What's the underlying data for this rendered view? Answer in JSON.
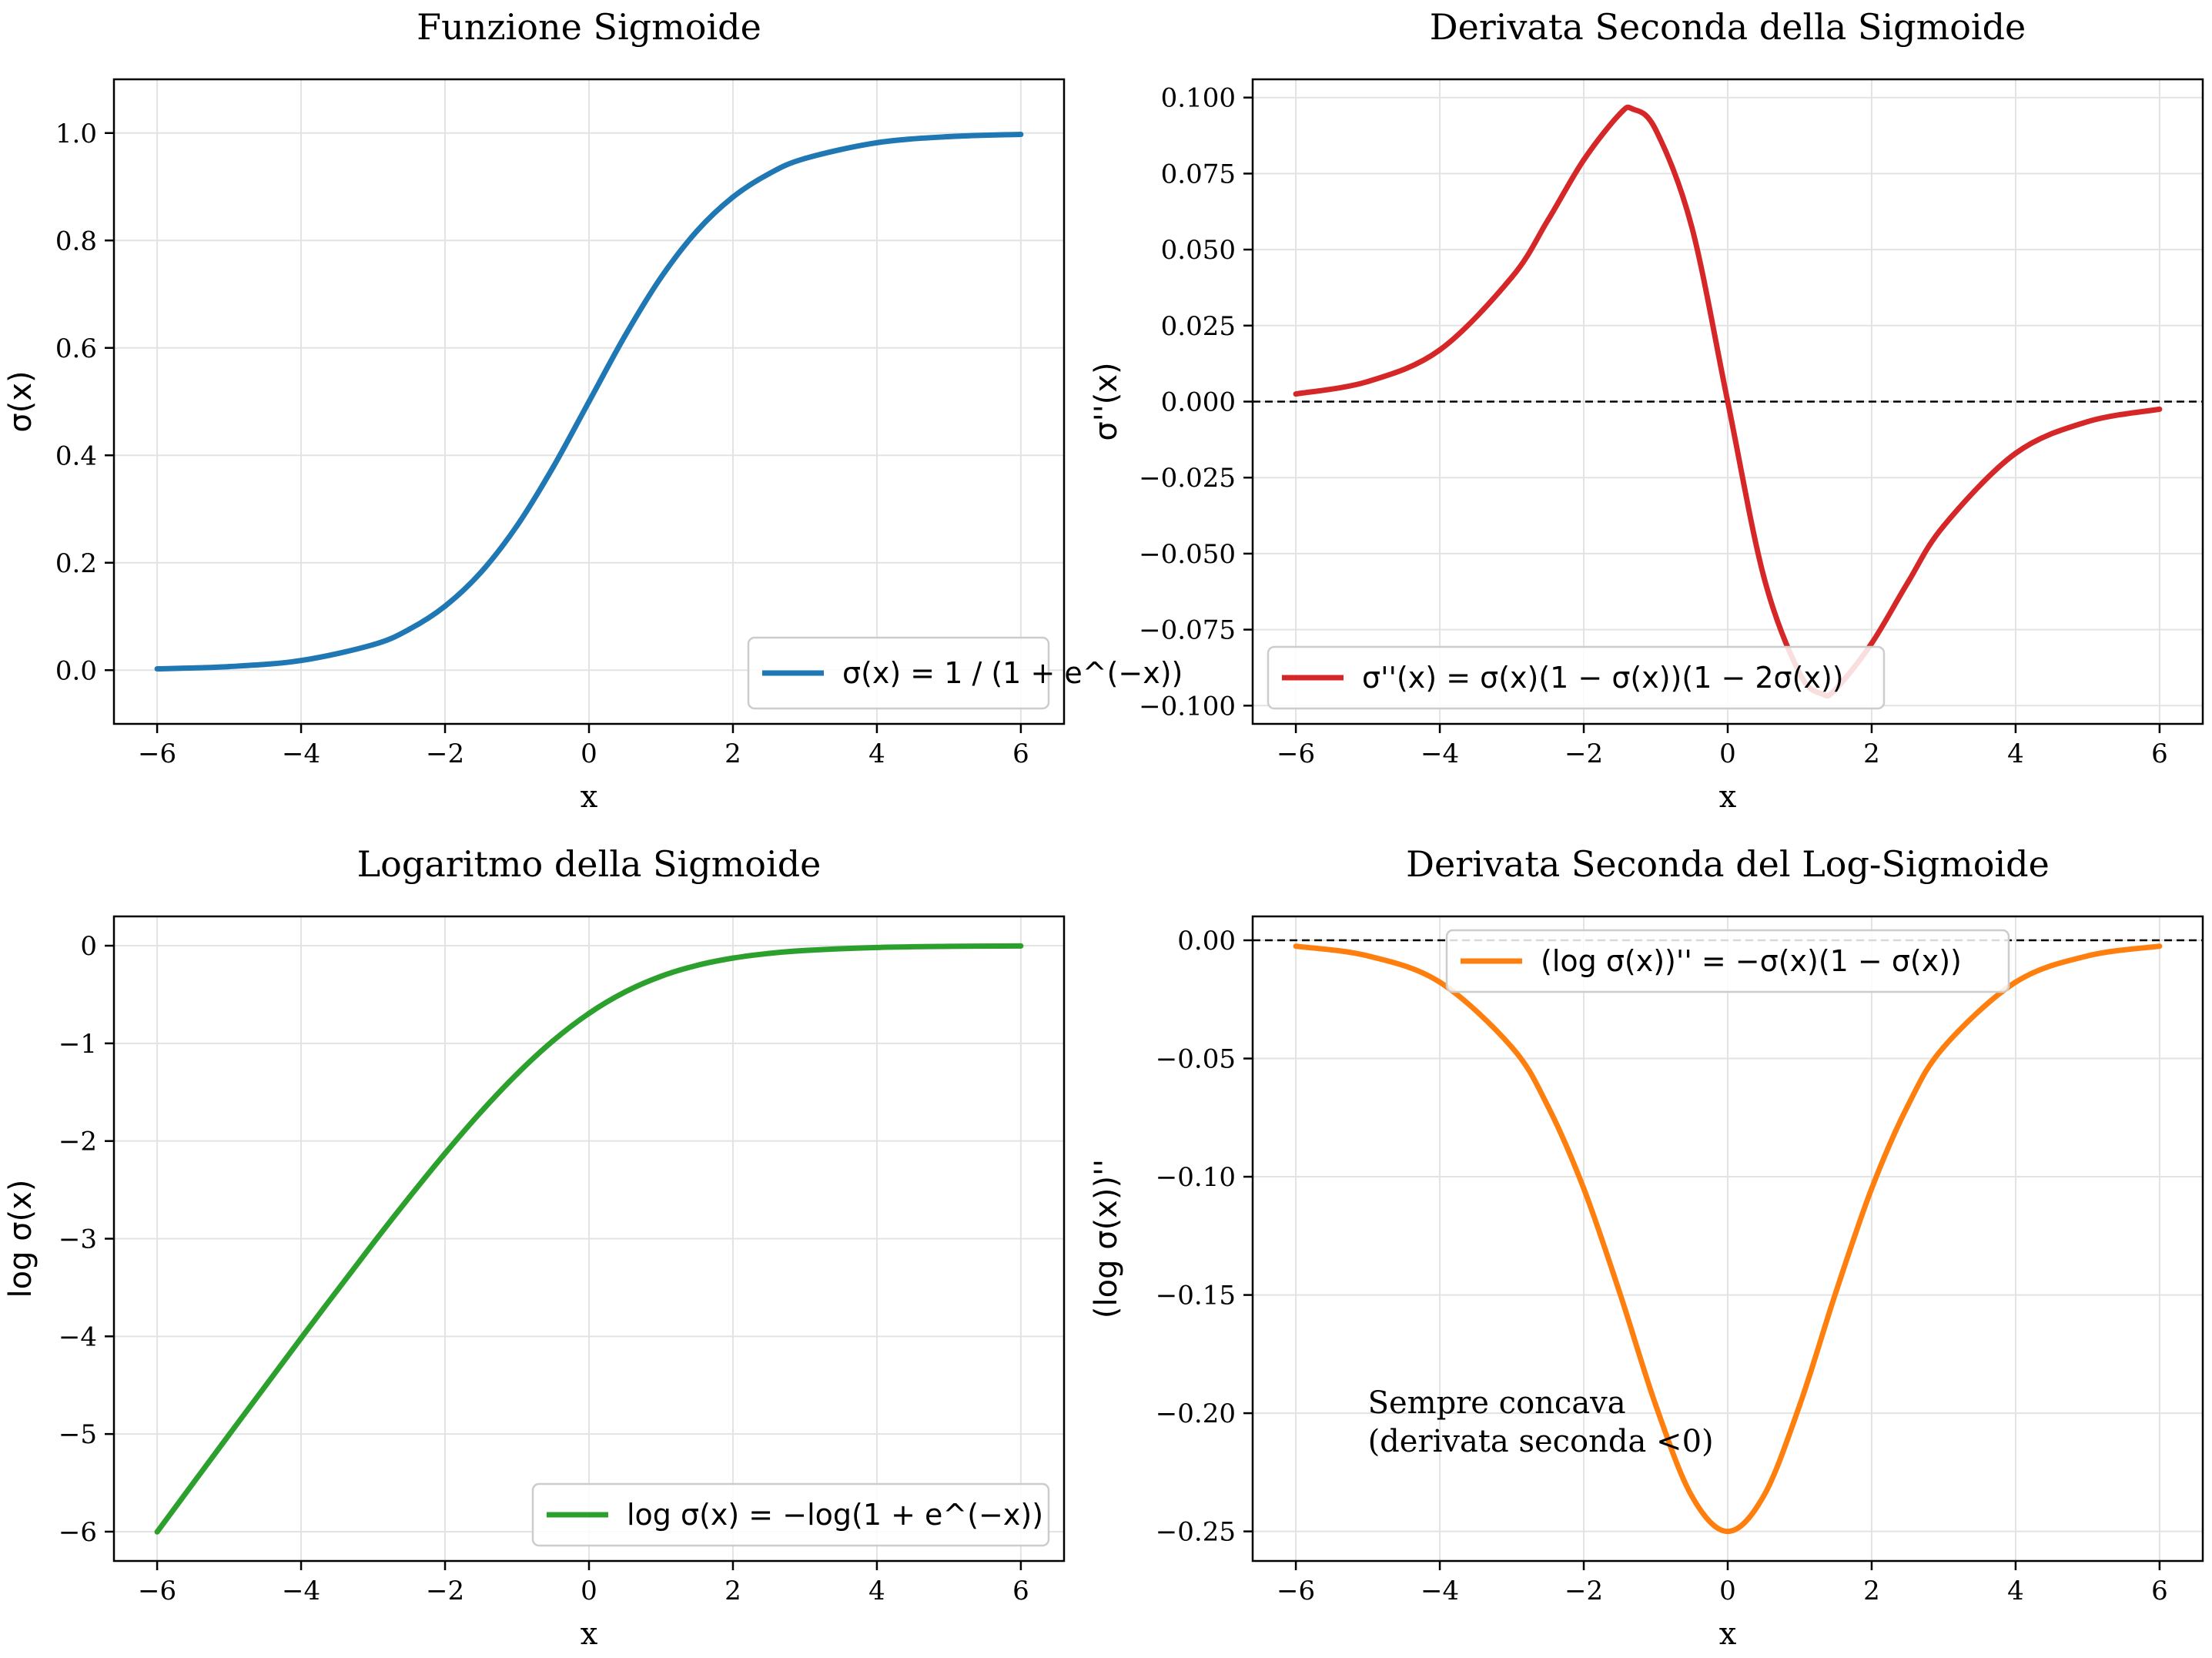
{
  "chart_data": [
    {
      "type": "line",
      "title": "Funzione Sigmoide",
      "xlabel": "x",
      "ylabel": "σ(x)",
      "xlim": [
        -6.6,
        6.6
      ],
      "ylim": [
        -0.1,
        1.1
      ],
      "xticks": [
        -6,
        -4,
        -2,
        0,
        2,
        4,
        6
      ],
      "xtick_labels": [
        "−6",
        "−4",
        "−2",
        "0",
        "2",
        "4",
        "6"
      ],
      "yticks": [
        0.0,
        0.2,
        0.4,
        0.6,
        0.8,
        1.0
      ],
      "ytick_labels": [
        "0.0",
        "0.2",
        "0.4",
        "0.6",
        "0.8",
        "1.0"
      ],
      "grid": true,
      "legend_position": "lower-right",
      "series": [
        {
          "name": "σ(x) = 1 / (1 + e^(−x))",
          "color": "#1f77b4",
          "x": [
            -6,
            -5,
            -4,
            -3,
            -2.5,
            -2,
            -1.5,
            -1,
            -0.5,
            0,
            0.5,
            1,
            1.5,
            2,
            2.5,
            3,
            4,
            5,
            6
          ],
          "y": [
            0.0025,
            0.0067,
            0.018,
            0.0474,
            0.0759,
            0.1192,
            0.1824,
            0.2689,
            0.3775,
            0.5,
            0.6225,
            0.7311,
            0.8176,
            0.8808,
            0.9241,
            0.9526,
            0.982,
            0.9933,
            0.9975
          ]
        }
      ]
    },
    {
      "type": "line",
      "title": "Derivata Seconda della Sigmoide",
      "xlabel": "x",
      "ylabel": "σ''(x)",
      "xlim": [
        -6.6,
        6.6
      ],
      "ylim": [
        -0.106,
        0.106
      ],
      "xticks": [
        -6,
        -4,
        -2,
        0,
        2,
        4,
        6
      ],
      "xtick_labels": [
        "−6",
        "−4",
        "−2",
        "0",
        "2",
        "4",
        "6"
      ],
      "yticks": [
        -0.1,
        -0.075,
        -0.05,
        -0.025,
        0.0,
        0.025,
        0.05,
        0.075,
        0.1
      ],
      "ytick_labels": [
        "−0.100",
        "−0.075",
        "−0.050",
        "−0.025",
        "0.000",
        "0.025",
        "0.050",
        "0.075",
        "0.100"
      ],
      "grid": true,
      "legend_position": "lower-left",
      "hline": 0,
      "series": [
        {
          "name": "σ''(x) = σ(x)(1 − σ(x))(1 − 2σ(x))",
          "color": "#d62728",
          "x": [
            -6,
            -5,
            -4,
            -3,
            -2.5,
            -2,
            -1.5,
            -1.317,
            -1,
            -0.5,
            0,
            0.5,
            1,
            1.317,
            1.5,
            2,
            2.5,
            3,
            4,
            5,
            6
          ],
          "y": [
            0.0025,
            0.0066,
            0.017,
            0.0409,
            0.0596,
            0.0795,
            0.0946,
            0.0962,
            0.0894,
            0.0575,
            0.0,
            -0.0575,
            -0.0894,
            -0.0962,
            -0.0946,
            -0.0795,
            -0.0596,
            -0.0409,
            -0.017,
            -0.0066,
            -0.0025
          ]
        }
      ]
    },
    {
      "type": "line",
      "title": "Logaritmo della Sigmoide",
      "xlabel": "x",
      "ylabel": "log σ(x)",
      "xlim": [
        -6.6,
        6.6
      ],
      "ylim": [
        -6.3,
        0.3
      ],
      "xticks": [
        -6,
        -4,
        -2,
        0,
        2,
        4,
        6
      ],
      "xtick_labels": [
        "−6",
        "−4",
        "−2",
        "0",
        "2",
        "4",
        "6"
      ],
      "yticks": [
        -6,
        -5,
        -4,
        -3,
        -2,
        -1,
        0
      ],
      "ytick_labels": [
        "−6",
        "−5",
        "−4",
        "−3",
        "−2",
        "−1",
        "0"
      ],
      "grid": true,
      "legend_position": "lower-right",
      "series": [
        {
          "name": "log σ(x) = −log(1 + e^(−x))",
          "color": "#2ca02c",
          "x": [
            -6,
            -5,
            -4,
            -3,
            -2.5,
            -2,
            -1.5,
            -1,
            -0.5,
            0,
            0.5,
            1,
            1.5,
            2,
            2.5,
            3,
            4,
            5,
            6
          ],
          "y": [
            -6.0025,
            -5.0067,
            -4.0181,
            -3.0486,
            -2.5789,
            -2.1269,
            -1.7014,
            -1.3133,
            -0.9741,
            -0.6931,
            -0.4741,
            -0.3133,
            -0.2014,
            -0.1269,
            -0.0789,
            -0.0486,
            -0.0181,
            -0.0067,
            -0.0025
          ]
        }
      ]
    },
    {
      "type": "line",
      "title": "Derivata Seconda del Log-Sigmoide",
      "xlabel": "x",
      "ylabel": "(log σ(x))''",
      "xlim": [
        -6.6,
        6.6
      ],
      "ylim": [
        -0.2625,
        0.0101
      ],
      "xticks": [
        -6,
        -4,
        -2,
        0,
        2,
        4,
        6
      ],
      "xtick_labels": [
        "−6",
        "−4",
        "−2",
        "0",
        "2",
        "4",
        "6"
      ],
      "yticks": [
        -0.25,
        -0.2,
        -0.15,
        -0.1,
        -0.05,
        0.0
      ],
      "ytick_labels": [
        "−0.25",
        "−0.20",
        "−0.15",
        "−0.10",
        "−0.05",
        "0.00"
      ],
      "grid": true,
      "legend_position": "upper-center",
      "hline": 0,
      "annotation": {
        "lines": [
          "Sempre concava",
          "(derivata seconda <0)"
        ],
        "x": -5,
        "y": -0.2
      },
      "series": [
        {
          "name": "(log σ(x))'' = −σ(x)(1 − σ(x))",
          "color": "#ff7f0e",
          "x": [
            -6,
            -5,
            -4,
            -3,
            -2.5,
            -2,
            -1.5,
            -1,
            -0.5,
            0,
            0.5,
            1,
            1.5,
            2,
            2.5,
            3,
            4,
            5,
            6
          ],
          "y": [
            -0.0025,
            -0.0066,
            -0.0177,
            -0.0452,
            -0.0701,
            -0.105,
            -0.1491,
            -0.1966,
            -0.235,
            -0.25,
            -0.235,
            -0.1966,
            -0.1491,
            -0.105,
            -0.0701,
            -0.0452,
            -0.0177,
            -0.0066,
            -0.0025
          ]
        }
      ]
    }
  ]
}
